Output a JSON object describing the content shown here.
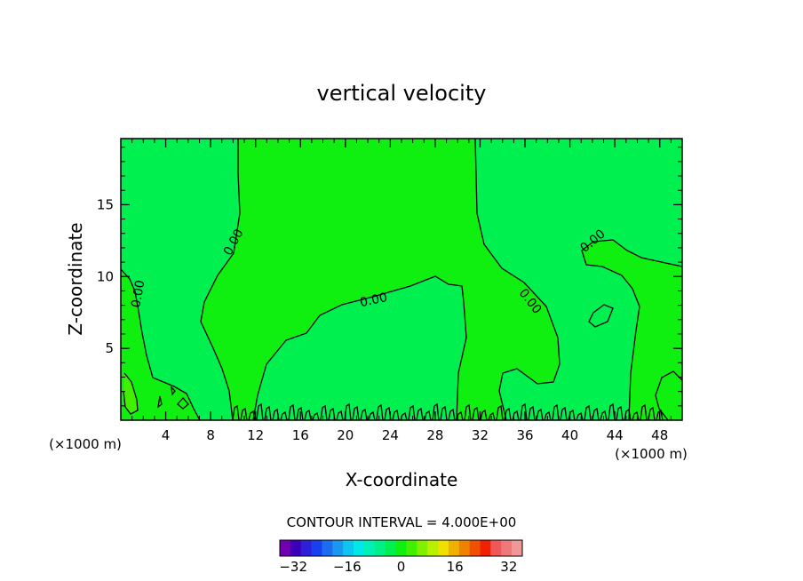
{
  "chart_data": {
    "type": "heatmap",
    "title": "vertical velocity",
    "xlabel": "X-coordinate",
    "ylabel": "Z-coordinate",
    "x_unit_left": "(×1000 m)",
    "x_unit_right": "(×1000 m)",
    "x_ticks": [
      4,
      8,
      12,
      16,
      20,
      24,
      28,
      32,
      36,
      40,
      44,
      48
    ],
    "y_ticks": [
      5,
      10,
      15
    ],
    "xlim": [
      0,
      50
    ],
    "ylim": [
      0,
      19.6
    ],
    "contour_interval_text": "CONTOUR INTERVAL = 4.000E+00",
    "contour_labels": [
      {
        "text": "0.00",
        "x": 1.5,
        "y": 8.8,
        "angle": -80
      },
      {
        "text": "0.00",
        "x": 10.0,
        "y": 12.4,
        "angle": -62
      },
      {
        "text": "0.00",
        "x": 22.5,
        "y": 8.4,
        "angle": -12
      },
      {
        "text": "0.00",
        "x": 36.5,
        "y": 8.3,
        "angle": 52
      },
      {
        "text": "0.00",
        "x": 42.0,
        "y": 12.5,
        "angle": -40
      }
    ],
    "colorbar": {
      "min": -36,
      "max": 36,
      "step": 4,
      "colors": [
        "#7000b0",
        "#3a00b8",
        "#2e20d8",
        "#1840f0",
        "#1c6cf0",
        "#1a98f0",
        "#10c4f0",
        "#00e8e8",
        "#00f0b8",
        "#00f088",
        "#00f050",
        "#10f010",
        "#40f000",
        "#80f000",
        "#b8f000",
        "#f0e000",
        "#f0b000",
        "#f08000",
        "#f05000",
        "#f02000",
        "#f05858",
        "#f07878",
        "#f09898"
      ],
      "tick_labels": [
        "−32",
        "−16",
        "0",
        "16",
        "32"
      ],
      "tick_values": [
        -32,
        -16,
        0,
        16,
        32
      ]
    },
    "fill": {
      "background_color": "#00f050",
      "upper_positive_color": "#10f010",
      "small_patch_color": "#40f000"
    }
  }
}
